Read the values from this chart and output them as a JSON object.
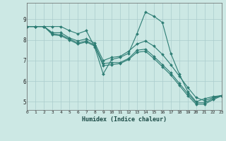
{
  "xlabel": "Humidex (Indice chaleur)",
  "background_color": "#cce8e4",
  "grid_color": "#aacccc",
  "line_color": "#2d7d74",
  "xlim": [
    0,
    23
  ],
  "ylim": [
    4.6,
    9.8
  ],
  "yticks": [
    5,
    6,
    7,
    8,
    9
  ],
  "xtick_labels": [
    "0",
    "1",
    "2",
    "3",
    "4",
    "5",
    "6",
    "7",
    "8",
    "9",
    "10",
    "11",
    "12",
    "13",
    "14",
    "15",
    "16",
    "17",
    "18",
    "19",
    "20",
    "21",
    "22",
    "23"
  ],
  "series": [
    [
      8.65,
      8.65,
      8.65,
      8.65,
      8.65,
      8.45,
      8.3,
      8.45,
      7.65,
      6.35,
      7.05,
      7.15,
      7.35,
      8.3,
      9.35,
      9.15,
      8.85,
      7.35,
      6.35,
      5.5,
      5.0,
      5.15,
      5.25,
      5.3
    ],
    [
      8.65,
      8.65,
      8.65,
      8.35,
      8.35,
      8.1,
      7.95,
      8.05,
      7.85,
      7.0,
      7.15,
      7.2,
      7.45,
      7.8,
      7.95,
      7.7,
      7.3,
      6.8,
      6.25,
      5.7,
      5.2,
      5.05,
      5.2,
      5.3
    ],
    [
      8.65,
      8.65,
      8.65,
      8.3,
      8.25,
      8.05,
      7.85,
      7.95,
      7.75,
      6.85,
      6.9,
      6.9,
      7.1,
      7.5,
      7.55,
      7.2,
      6.8,
      6.4,
      5.9,
      5.4,
      4.95,
      4.95,
      5.15,
      5.3
    ],
    [
      8.65,
      8.65,
      8.65,
      8.25,
      8.2,
      8.0,
      7.8,
      7.9,
      7.7,
      6.75,
      6.8,
      6.85,
      7.05,
      7.4,
      7.45,
      7.1,
      6.7,
      6.3,
      5.8,
      5.3,
      4.88,
      4.88,
      5.1,
      5.28
    ]
  ]
}
